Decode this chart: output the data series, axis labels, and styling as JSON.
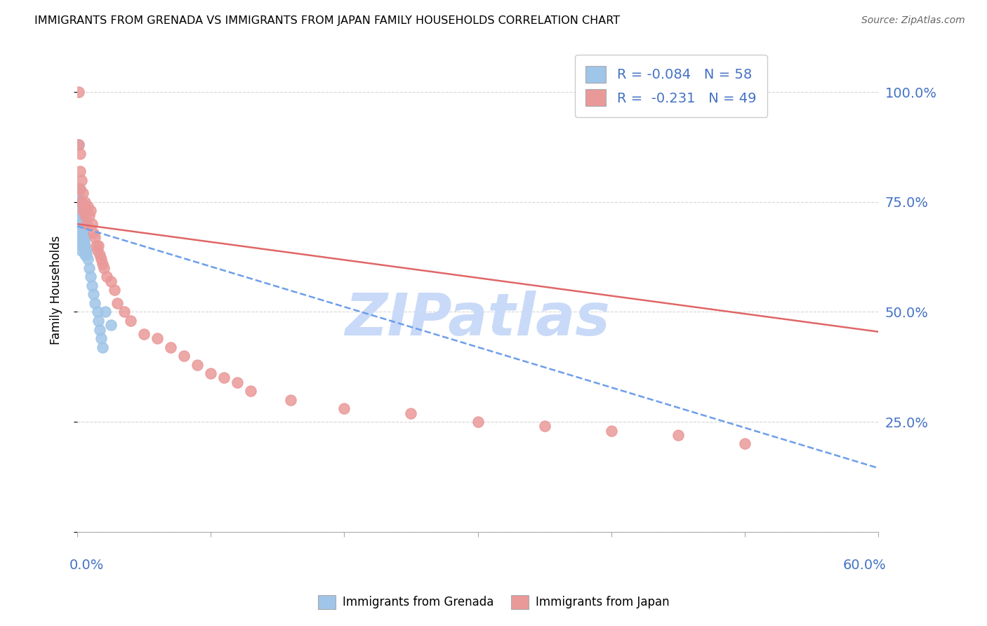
{
  "title": "IMMIGRANTS FROM GRENADA VS IMMIGRANTS FROM JAPAN FAMILY HOUSEHOLDS CORRELATION CHART",
  "source": "Source: ZipAtlas.com",
  "ylabel": "Family Households",
  "legend_grenada": "R = -0.084   N = 58",
  "legend_japan": "R =  -0.231   N = 49",
  "legend_label_grenada": "Immigrants from Grenada",
  "legend_label_japan": "Immigrants from Japan",
  "color_grenada": "#9fc5e8",
  "color_japan": "#ea9999",
  "color_trendline_grenada": "#6d9eeb",
  "color_trendline_japan": "#e06666",
  "color_axis_blue": "#4472c4",
  "color_grid": "#cccccc",
  "background_color": "#ffffff",
  "watermark_text": "ZIPatlas",
  "watermark_color": "#c9daf8",
  "scatter_grenada_x": [
    0.001,
    0.001,
    0.001,
    0.001,
    0.001,
    0.001,
    0.001,
    0.001,
    0.001,
    0.001,
    0.002,
    0.002,
    0.002,
    0.002,
    0.002,
    0.002,
    0.002,
    0.002,
    0.002,
    0.002,
    0.003,
    0.003,
    0.003,
    0.003,
    0.003,
    0.003,
    0.003,
    0.003,
    0.003,
    0.003,
    0.004,
    0.004,
    0.004,
    0.004,
    0.004,
    0.004,
    0.004,
    0.005,
    0.005,
    0.005,
    0.006,
    0.006,
    0.006,
    0.007,
    0.007,
    0.008,
    0.009,
    0.01,
    0.011,
    0.012,
    0.013,
    0.015,
    0.016,
    0.017,
    0.018,
    0.019,
    0.021,
    0.025
  ],
  "scatter_grenada_y": [
    0.88,
    0.78,
    0.77,
    0.76,
    0.75,
    0.74,
    0.73,
    0.72,
    0.71,
    0.7,
    0.75,
    0.74,
    0.73,
    0.72,
    0.71,
    0.7,
    0.69,
    0.68,
    0.68,
    0.67,
    0.73,
    0.72,
    0.71,
    0.7,
    0.69,
    0.68,
    0.67,
    0.66,
    0.65,
    0.64,
    0.72,
    0.71,
    0.7,
    0.69,
    0.68,
    0.67,
    0.66,
    0.68,
    0.67,
    0.66,
    0.65,
    0.64,
    0.63,
    0.64,
    0.63,
    0.62,
    0.6,
    0.58,
    0.56,
    0.54,
    0.52,
    0.5,
    0.48,
    0.46,
    0.44,
    0.42,
    0.5,
    0.47
  ],
  "scatter_japan_x": [
    0.001,
    0.001,
    0.002,
    0.002,
    0.002,
    0.003,
    0.003,
    0.004,
    0.004,
    0.005,
    0.006,
    0.006,
    0.007,
    0.008,
    0.009,
    0.01,
    0.011,
    0.012,
    0.013,
    0.014,
    0.015,
    0.016,
    0.017,
    0.018,
    0.019,
    0.02,
    0.022,
    0.025,
    0.028,
    0.03,
    0.035,
    0.04,
    0.05,
    0.06,
    0.07,
    0.08,
    0.09,
    0.1,
    0.11,
    0.12,
    0.13,
    0.16,
    0.2,
    0.25,
    0.3,
    0.35,
    0.4,
    0.45,
    0.5
  ],
  "scatter_japan_y": [
    1.0,
    0.88,
    0.86,
    0.82,
    0.78,
    0.8,
    0.75,
    0.77,
    0.73,
    0.74,
    0.75,
    0.72,
    0.7,
    0.74,
    0.72,
    0.73,
    0.7,
    0.68,
    0.67,
    0.65,
    0.64,
    0.65,
    0.63,
    0.62,
    0.61,
    0.6,
    0.58,
    0.57,
    0.55,
    0.52,
    0.5,
    0.48,
    0.45,
    0.44,
    0.42,
    0.4,
    0.38,
    0.36,
    0.35,
    0.34,
    0.32,
    0.3,
    0.28,
    0.27,
    0.25,
    0.24,
    0.23,
    0.22,
    0.2
  ],
  "trendline_grenada_x0": 0.0,
  "trendline_grenada_y0": 0.695,
  "trendline_grenada_x1": 0.6,
  "trendline_grenada_y1": 0.145,
  "trendline_japan_x0": 0.0,
  "trendline_japan_y0": 0.7,
  "trendline_japan_x1": 0.6,
  "trendline_japan_y1": 0.455,
  "xlim": [
    0.0,
    0.6
  ],
  "ylim": [
    0.0,
    1.1
  ],
  "yticks": [
    0.0,
    0.25,
    0.5,
    0.75,
    1.0
  ],
  "ytick_labels": [
    "",
    "25.0%",
    "50.0%",
    "75.0%",
    "100.0%"
  ]
}
